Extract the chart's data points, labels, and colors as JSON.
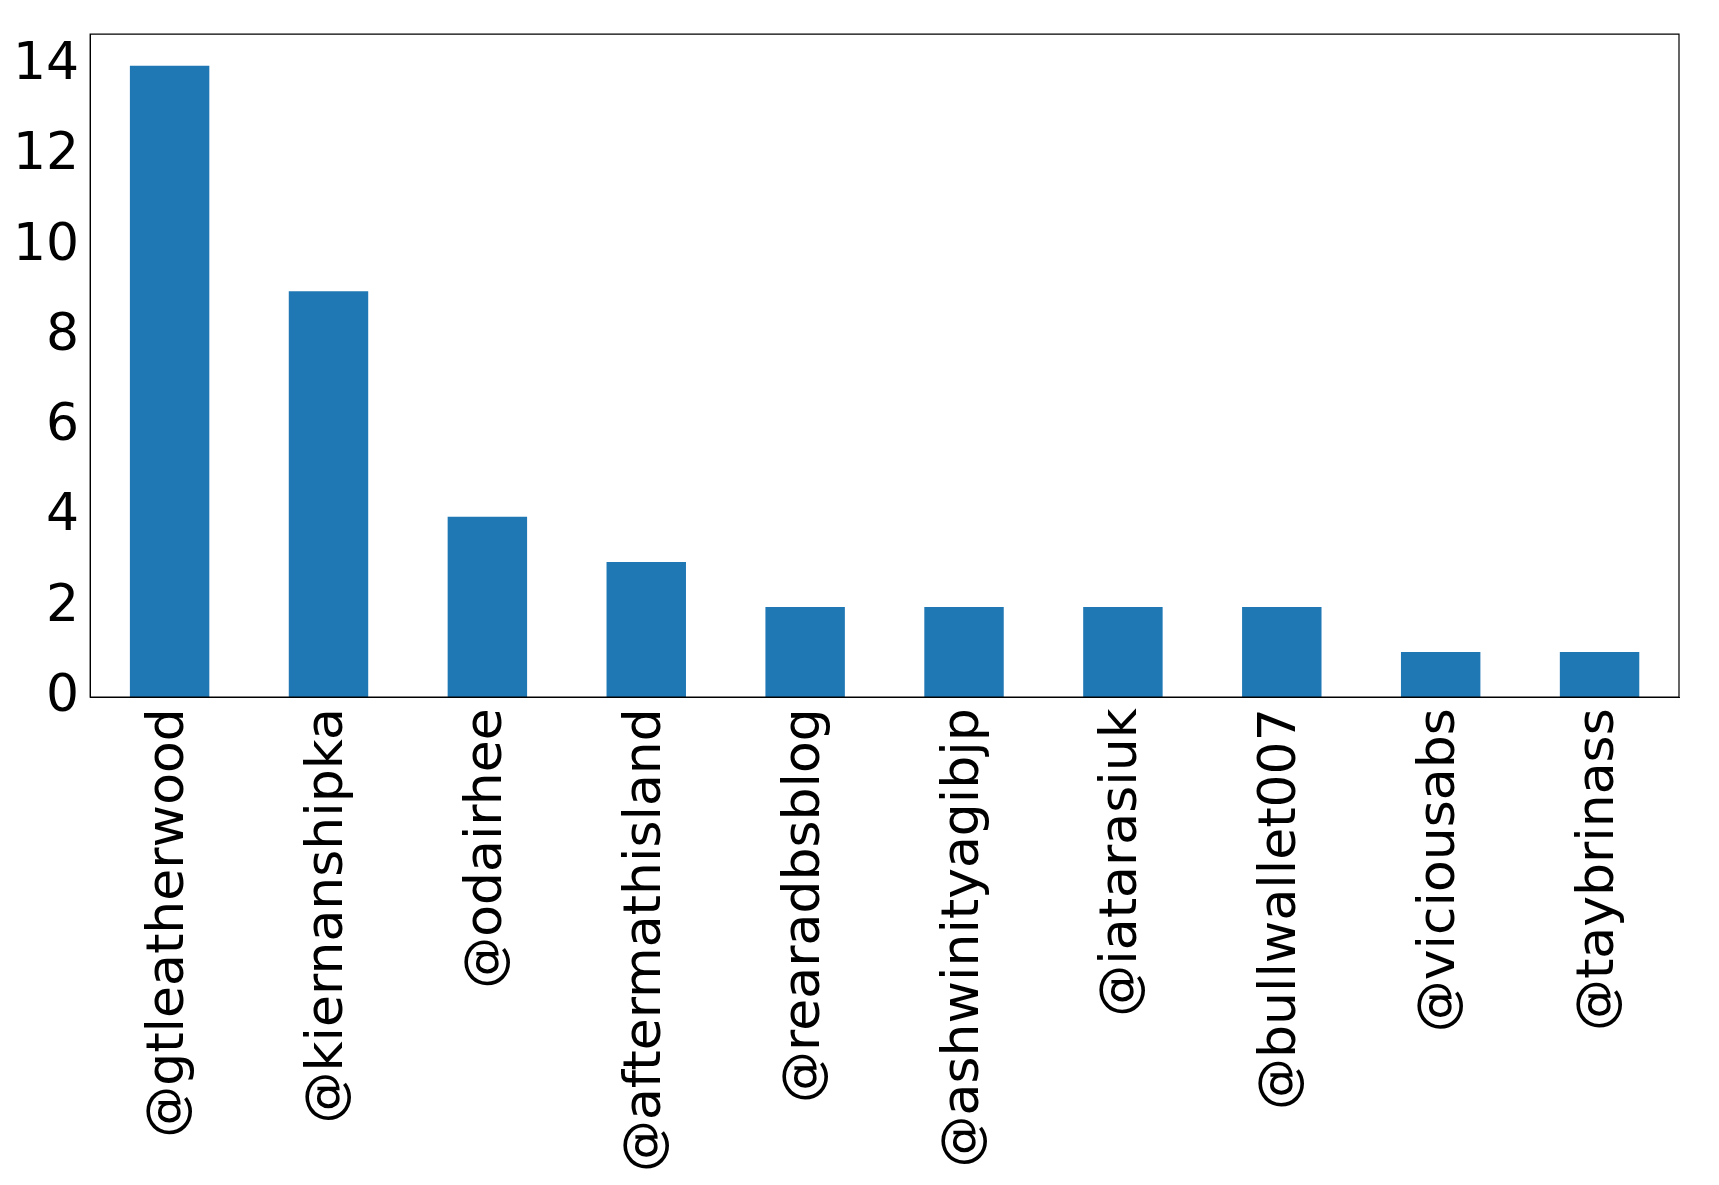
{
  "chart_data": {
    "type": "bar",
    "categories": [
      "@gtleatherwood",
      "@kiernanshipka",
      "@odairhee",
      "@aftermathisland",
      "@rearadbsblog",
      "@ashwinityagibjp",
      "@iatarasiuk",
      "@bullwallet007",
      "@viciousabs",
      "@taybrinass"
    ],
    "values": [
      14,
      9,
      4,
      3,
      2,
      2,
      2,
      2,
      1,
      1
    ],
    "color": "#1f77b4",
    "ylim": [
      0,
      14.7
    ],
    "yticks": [
      0,
      2,
      4,
      6,
      8,
      10,
      12,
      14
    ],
    "grid": false,
    "legend": false
  }
}
